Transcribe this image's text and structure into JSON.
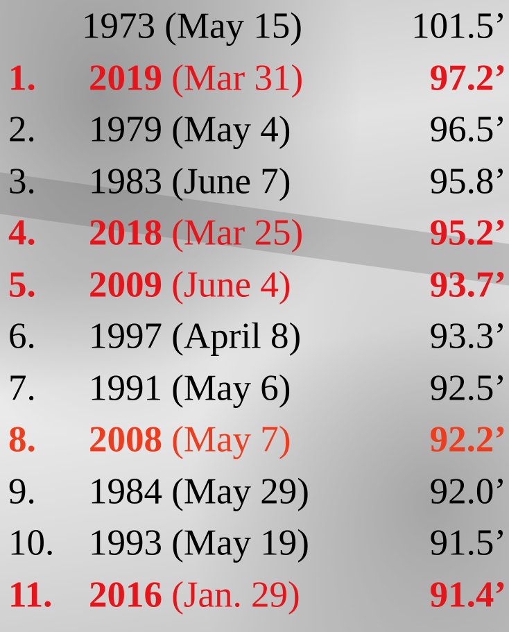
{
  "rows": [
    {
      "year": "1973",
      "date": "(May 15)",
      "crest": "101.5’",
      "color": "#000000",
      "bold": false
    },
    {
      "rank": "1.",
      "year": "2019",
      "date": "(Mar 31)",
      "crest": "97.2’",
      "color": "#e8141a",
      "bold": true
    },
    {
      "rank": "2.",
      "year": "1979",
      "date": "(May 4)",
      "crest": "96.5’",
      "color": "#000000",
      "bold": false
    },
    {
      "rank": "3.",
      "year": "1983",
      "date": "(June 7)",
      "crest": "95.8’",
      "color": "#000000",
      "bold": false
    },
    {
      "rank": "4.",
      "year": "2018",
      "date": "(Mar 25)",
      "crest": "95.2’",
      "color": "#e8141a",
      "bold": true
    },
    {
      "rank": "5.",
      "year": "2009",
      "date": "(June 4)",
      "crest": "93.7’",
      "color": "#e8141a",
      "bold": true
    },
    {
      "rank": "6.",
      "year": "1997",
      "date": "(April 8)",
      "crest": "93.3’",
      "color": "#000000",
      "bold": false
    },
    {
      "rank": "7.",
      "year": "1991",
      "date": "(May 6)",
      "crest": "92.5’",
      "color": "#000000",
      "bold": false
    },
    {
      "rank": "8.",
      "year": "2008",
      "date": "(May 7)",
      "crest": "92.2’",
      "color": "#f03c1c",
      "bold": true
    },
    {
      "rank": "9.",
      "year": "1984",
      "date": "(May 29)",
      "crest": "92.0’",
      "color": "#000000",
      "bold": false
    },
    {
      "rank": "10.",
      "year": "1993",
      "date": "(May 19)",
      "crest": "91.5’",
      "color": "#000000",
      "bold": false
    },
    {
      "rank": "11.",
      "year": "2016",
      "date": "(Jan. 29)",
      "crest": "91.4’",
      "color": "#e8141a",
      "bold": true
    }
  ]
}
